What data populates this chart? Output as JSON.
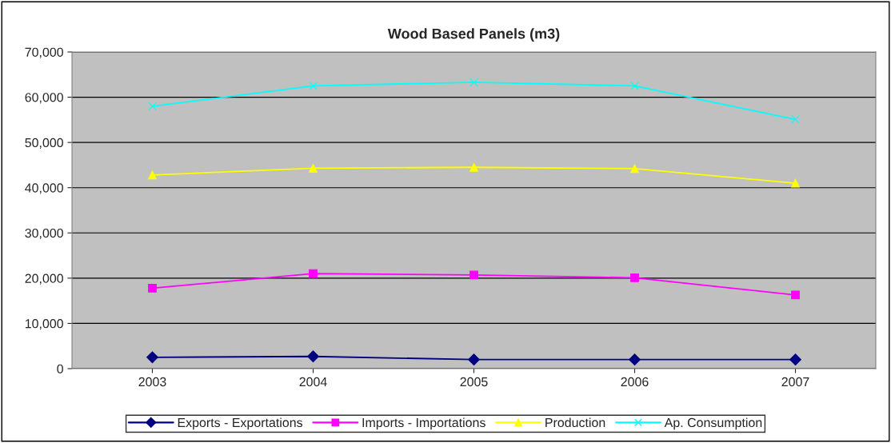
{
  "chart_data": {
    "type": "line",
    "title": "Wood Based Panels (m3)",
    "categories": [
      "2003",
      "2004",
      "2005",
      "2006",
      "2007"
    ],
    "series": [
      {
        "name": "Exports - Exportations",
        "color": "#000080",
        "marker": "diamond",
        "values": [
          2500,
          2700,
          2000,
          2000,
          2000
        ]
      },
      {
        "name": "Imports - Importations",
        "color": "#ff00ff",
        "marker": "square",
        "values": [
          17800,
          21000,
          20700,
          20100,
          16300
        ]
      },
      {
        "name": "Production",
        "color": "#ffff00",
        "marker": "triangle",
        "values": [
          42800,
          44300,
          44500,
          44200,
          41000
        ]
      },
      {
        "name": "Ap. Consumption",
        "color": "#00ffff",
        "marker": "cross",
        "values": [
          58000,
          62500,
          63300,
          62500,
          55100
        ]
      }
    ],
    "ylim": [
      0,
      70000
    ],
    "yticks": [
      {
        "value": 0,
        "label": "0"
      },
      {
        "value": 10000,
        "label": "10,000"
      },
      {
        "value": 20000,
        "label": "20,000"
      },
      {
        "value": 30000,
        "label": "30,000"
      },
      {
        "value": 40000,
        "label": "40,000"
      },
      {
        "value": 50000,
        "label": "50,000"
      },
      {
        "value": 60000,
        "label": "60,000"
      },
      {
        "value": 70000,
        "label": "70,000"
      }
    ],
    "grid": "y",
    "legend": "bottom"
  }
}
